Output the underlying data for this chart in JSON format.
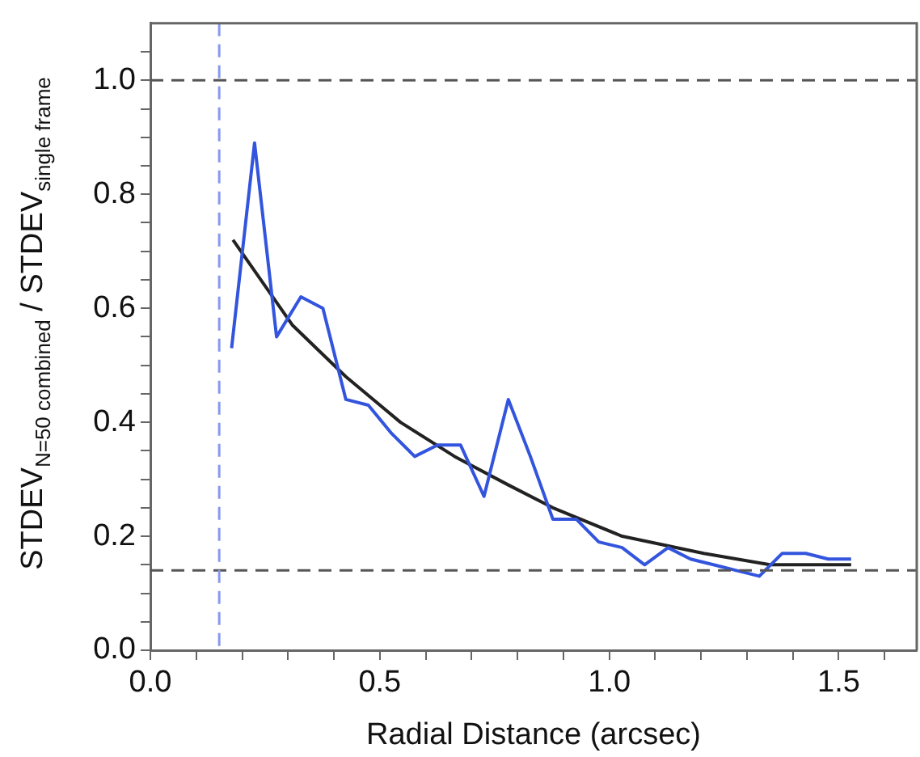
{
  "chart_data": {
    "type": "line",
    "xlabel": "Radial Distance (arcsec)",
    "ylabel": "STDEV$_{N=50 combined}$ / STDEV$_{single frame}$",
    "xlim": [
      0,
      1.67
    ],
    "ylim": [
      0,
      1.1
    ],
    "xticks": [
      {
        "value": 0,
        "label": "0.0"
      },
      {
        "value": 0.1,
        "label": null
      },
      {
        "value": 0.2,
        "label": null
      },
      {
        "value": 0.3,
        "label": null
      },
      {
        "value": 0.4,
        "label": null
      },
      {
        "value": 0.5,
        "label": "0.5"
      },
      {
        "value": 0.6,
        "label": null
      },
      {
        "value": 0.7,
        "label": null
      },
      {
        "value": 0.8,
        "label": null
      },
      {
        "value": 0.9,
        "label": null
      },
      {
        "value": 1,
        "label": "1.0"
      },
      {
        "value": 1.1,
        "label": null
      },
      {
        "value": 1.2,
        "label": null
      },
      {
        "value": 1.3,
        "label": null
      },
      {
        "value": 1.4,
        "label": null
      },
      {
        "value": 1.5,
        "label": "1.5"
      },
      {
        "value": 1.6,
        "label": null
      }
    ],
    "yticks": [
      {
        "value": 0,
        "label": "0.0"
      },
      {
        "value": 0.05,
        "label": null
      },
      {
        "value": 0.1,
        "label": null
      },
      {
        "value": 0.15,
        "label": null
      },
      {
        "value": 0.2,
        "label": "0.2"
      },
      {
        "value": 0.25,
        "label": null
      },
      {
        "value": 0.3,
        "label": null
      },
      {
        "value": 0.35,
        "label": null
      },
      {
        "value": 0.4,
        "label": "0.4"
      },
      {
        "value": 0.45,
        "label": null
      },
      {
        "value": 0.5,
        "label": null
      },
      {
        "value": 0.55,
        "label": null
      },
      {
        "value": 0.6,
        "label": "0.6"
      },
      {
        "value": 0.65,
        "label": null
      },
      {
        "value": 0.7,
        "label": null
      },
      {
        "value": 0.75,
        "label": null
      },
      {
        "value": 0.8,
        "label": "0.8"
      },
      {
        "value": 0.85,
        "label": null
      },
      {
        "value": 0.9,
        "label": null
      },
      {
        "value": 0.95,
        "label": null
      },
      {
        "value": 1,
        "label": "1.0"
      },
      {
        "value": 1.05,
        "label": null
      }
    ],
    "series": [
      {
        "color": "#3355dd",
        "x": [
          0.177,
          0.227,
          0.275,
          0.328,
          0.376,
          0.426,
          0.475,
          0.526,
          0.576,
          0.626,
          0.676,
          0.727,
          0.78,
          0.828,
          0.877,
          0.928,
          0.977,
          1.028,
          1.077,
          1.128,
          1.177,
          1.227,
          1.277,
          1.327,
          1.377,
          1.428,
          1.477,
          1.527
        ],
        "values": [
          0.53,
          0.89,
          0.55,
          0.62,
          0.6,
          0.44,
          0.43,
          0.38,
          0.34,
          0.36,
          0.36,
          0.27,
          0.44,
          0.34,
          0.23,
          0.23,
          0.19,
          0.18,
          0.15,
          0.18,
          0.16,
          0.15,
          0.14,
          0.13,
          0.17,
          0.17,
          0.16,
          0.16
        ]
      },
      {
        "color": "#222222",
        "x": [
          0.18,
          0.31,
          0.426,
          0.545,
          0.663,
          0.78,
          0.877,
          1.028,
          1.206,
          1.35,
          1.527
        ],
        "values": [
          0.72,
          0.57,
          0.48,
          0.4,
          0.34,
          0.29,
          0.25,
          0.2,
          0.17,
          0.15,
          0.15
        ]
      }
    ],
    "ref_lines": [
      {
        "axis": "y",
        "value": 1,
        "color": "#555555",
        "line_style": "dashed"
      },
      {
        "axis": "y",
        "value": 0.14,
        "color": "#555555",
        "line_style": "dashed"
      },
      {
        "axis": "x",
        "value": 0.15,
        "color": "#8899ee",
        "line_style": "dashed"
      }
    ],
    "grid": false,
    "legend": false,
    "marker": "none",
    "line_style": "solid"
  }
}
